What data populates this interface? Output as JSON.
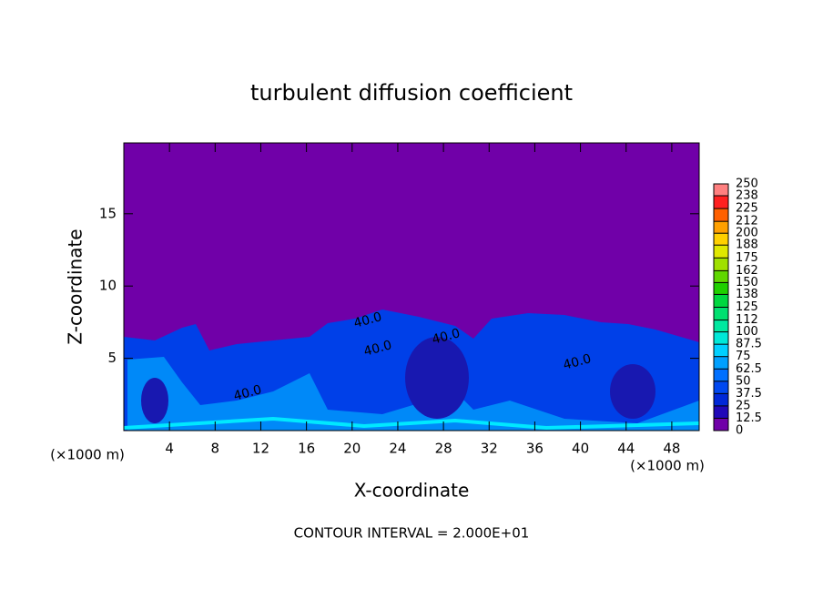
{
  "chart_data": {
    "type": "contour",
    "title": "turbulent diffusion coefficient",
    "x_label": "X-coordinate",
    "y_label": "Z-coordinate",
    "x_unit": "(×1000 m)",
    "footer": "CONTOUR INTERVAL = 2.000E+01",
    "xlim": [
      0,
      50.4
    ],
    "xticks": [
      4,
      8,
      12,
      16,
      20,
      24,
      28,
      32,
      36,
      40,
      44,
      48
    ],
    "ylim": [
      0,
      19.9
    ],
    "yticks": [
      5,
      10,
      15
    ],
    "contour_labels": [
      "40.0",
      "40.0",
      "40.0",
      "40.0",
      "40.0"
    ],
    "colorbar": {
      "ticks": [
        0,
        12.5,
        25,
        37.5,
        50,
        62.5,
        75,
        87.5,
        100,
        112,
        125,
        138,
        150,
        162,
        175,
        188,
        200,
        212,
        225,
        238,
        250
      ],
      "colors": [
        "#7000a8",
        "#2008b8",
        "#0028d8",
        "#0048f0",
        "#0070ff",
        "#00a0ff",
        "#00d0ff",
        "#00e8d8",
        "#00e8a0",
        "#00e070",
        "#00d840",
        "#20d000",
        "#60d800",
        "#a0e000",
        "#e0e800",
        "#ffd000",
        "#ffa000",
        "#ff6000",
        "#ff2020",
        "#ff8080"
      ]
    }
  }
}
